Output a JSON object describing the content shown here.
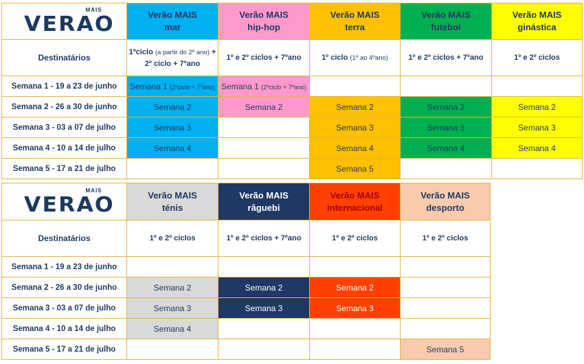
{
  "logo": {
    "small": "MAIS",
    "main": "VERAO"
  },
  "labels": {
    "destinatarios": "Destinatários"
  },
  "colors": {
    "mar": "#00b0f0",
    "hiphop": "#ff99cc",
    "terra": "#ffc000",
    "futebol": "#00b050",
    "ginastica": "#ffff00",
    "tenis": "#d9d9d9",
    "raguebi": "#1f3864",
    "internacional": "#ff4000",
    "desporto": "#f8cbad",
    "border": "#e3b53a"
  },
  "weeks": [
    "Semana 1 - 19 a 23 de junho",
    "Semana 2 - 26 a 30 de junho",
    "Semana 3 - 03 a 07 de julho",
    "Semana 4 - 10 a 14 de julho",
    "Semana 5 - 17 a 21 de julho"
  ],
  "table1": {
    "programs": [
      {
        "line1": "Verão MAIS",
        "line2": "mar"
      },
      {
        "line1": "Verão MAIS",
        "line2": "hip-hop"
      },
      {
        "line1": "Verão MAIS",
        "line2": "terra"
      },
      {
        "line1": "Verão MAIS",
        "line2": "futebol"
      },
      {
        "line1": "Verão MAIS",
        "line2": "ginástica"
      }
    ],
    "dest": {
      "mar_a": "1ºciclo",
      "mar_b": "(a partir do 2º ano)",
      "mar_c": "+ 2º ciclo + 7ºano",
      "hiphop": "1º e 2º ciclos + 7ºano",
      "terra_a": "1º ciclo",
      "terra_b": "(1º ao 4ºano)",
      "futebol": "1º e 2º ciclos + 7ºano",
      "ginastica": "1º e 2º ciclos"
    },
    "cells": {
      "w1_mar_a": "Semana 1",
      "w1_mar_b": "(2ºciclo + 7ºano)",
      "w1_hiphop_a": "Semana 1",
      "w1_hiphop_b": "(2ºciclo + 7ºano)",
      "w2": "Semana 2",
      "w3": "Semana 3",
      "w4": "Semana 4",
      "w5": "Semana 5"
    }
  },
  "table2": {
    "programs": [
      {
        "line1": "Verão MAIS",
        "line2": "ténis"
      },
      {
        "line1": "Verão MAIS",
        "line2": "râguebi"
      },
      {
        "line1": "Verão MAIS",
        "line2": "internacional"
      },
      {
        "line1": "Verão MAIS",
        "line2": "desporto"
      }
    ],
    "dest": {
      "tenis": "1º e 2º ciclos",
      "raguebi": "1º e 2º ciclos + 7ºano",
      "internacional": "1º e 2º ciclos",
      "desporto": "1º e 2º ciclos"
    },
    "cells": {
      "w2": "Semana 2",
      "w3": "Semana 3",
      "w4": "Semana 4",
      "w5": "Semana 5"
    }
  }
}
